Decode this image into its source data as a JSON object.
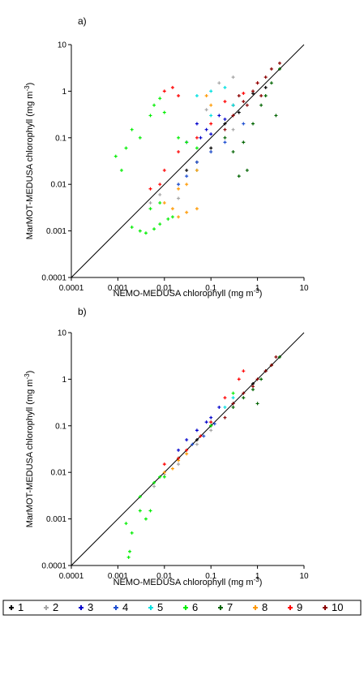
{
  "chart_data": [
    {
      "type": "scatter",
      "panel_label": "a)",
      "xlabel": "NEMO-MEDUSA chlorophyll (mg m",
      "ylabel": "MarMOT-MEDUSA chlorophyll (mg m",
      "unit_exponent": "-3",
      "xscale": "log",
      "yscale": "log",
      "xlim": [
        0.0001,
        10
      ],
      "ylim": [
        0.0001,
        10
      ],
      "x_ticks": [
        "0.0001",
        "0.001",
        "0.01",
        "0.1",
        "1",
        "10"
      ],
      "y_ticks": [
        "0.0001",
        "0.001",
        "0.01",
        "0.1",
        "1",
        "10"
      ],
      "reference_line": "1:1",
      "series": [
        {
          "name": "1",
          "color": "#000000",
          "points": [
            [
              0.05,
              0.03
            ],
            [
              0.1,
              0.06
            ],
            [
              0.2,
              0.2
            ],
            [
              0.4,
              0.35
            ],
            [
              0.8,
              0.9
            ],
            [
              1.5,
              1.2
            ],
            [
              0.03,
              0.02
            ],
            [
              0.3,
              0.5
            ]
          ]
        },
        {
          "name": "2",
          "color": "#a6a6a6",
          "points": [
            [
              0.005,
              0.004
            ],
            [
              0.008,
              0.006
            ],
            [
              0.02,
              0.01
            ],
            [
              0.05,
              0.02
            ],
            [
              0.1,
              0.05
            ],
            [
              0.3,
              0.15
            ],
            [
              0.15,
              1.5
            ],
            [
              0.3,
              2.0
            ],
            [
              0.08,
              0.4
            ],
            [
              0.02,
              0.005
            ]
          ]
        },
        {
          "name": "3",
          "color": "#0000cc",
          "points": [
            [
              0.05,
              0.2
            ],
            [
              0.08,
              0.15
            ],
            [
              0.1,
              0.12
            ],
            [
              0.15,
              0.3
            ],
            [
              0.2,
              0.25
            ],
            [
              0.03,
              0.08
            ],
            [
              0.06,
              0.1
            ]
          ]
        },
        {
          "name": "4",
          "color": "#1f4fd1",
          "points": [
            [
              0.03,
              0.015
            ],
            [
              0.05,
              0.03
            ],
            [
              0.1,
              0.05
            ],
            [
              0.2,
              0.08
            ],
            [
              0.5,
              0.2
            ],
            [
              0.02,
              0.01
            ]
          ]
        },
        {
          "name": "5",
          "color": "#00e0e0",
          "points": [
            [
              0.05,
              0.8
            ],
            [
              0.1,
              1.0
            ],
            [
              0.2,
              1.2
            ],
            [
              0.3,
              0.5
            ],
            [
              0.1,
              0.3
            ],
            [
              0.05,
              0.02
            ]
          ]
        },
        {
          "name": "6",
          "color": "#00ee00",
          "points": [
            [
              0.002,
              0.0012
            ],
            [
              0.003,
              0.001
            ],
            [
              0.004,
              0.0009
            ],
            [
              0.006,
              0.0011
            ],
            [
              0.008,
              0.0014
            ],
            [
              0.012,
              0.0018
            ],
            [
              0.015,
              0.002
            ],
            [
              0.0009,
              0.04
            ],
            [
              0.0012,
              0.02
            ],
            [
              0.0015,
              0.06
            ],
            [
              0.002,
              0.15
            ],
            [
              0.003,
              0.1
            ],
            [
              0.005,
              0.3
            ],
            [
              0.006,
              0.5
            ],
            [
              0.008,
              0.7
            ],
            [
              0.01,
              0.35
            ],
            [
              0.02,
              0.1
            ],
            [
              0.03,
              0.08
            ],
            [
              0.05,
              0.06
            ],
            [
              0.008,
              0.004
            ],
            [
              0.005,
              0.003
            ]
          ]
        },
        {
          "name": "7",
          "color": "#006400",
          "points": [
            [
              0.3,
              0.05
            ],
            [
              0.5,
              0.08
            ],
            [
              0.8,
              0.2
            ],
            [
              1.2,
              0.5
            ],
            [
              2.0,
              1.5
            ],
            [
              3.0,
              3.0
            ],
            [
              0.2,
              0.1
            ],
            [
              0.6,
              0.02
            ],
            [
              0.4,
              0.015
            ],
            [
              2.5,
              0.3
            ],
            [
              1.5,
              0.8
            ]
          ]
        },
        {
          "name": "8",
          "color": "#ff9900",
          "points": [
            [
              0.01,
              0.004
            ],
            [
              0.015,
              0.003
            ],
            [
              0.02,
              0.002
            ],
            [
              0.03,
              0.0025
            ],
            [
              0.05,
              0.003
            ],
            [
              0.02,
              0.008
            ],
            [
              0.03,
              0.01
            ],
            [
              0.05,
              0.02
            ],
            [
              0.1,
              0.5
            ],
            [
              0.08,
              0.8
            ]
          ]
        },
        {
          "name": "9",
          "color": "#ff0000",
          "points": [
            [
              0.005,
              0.008
            ],
            [
              0.008,
              0.01
            ],
            [
              0.01,
              0.02
            ],
            [
              0.02,
              0.05
            ],
            [
              0.05,
              0.1
            ],
            [
              0.1,
              0.2
            ],
            [
              0.2,
              0.6
            ],
            [
              0.3,
              0.3
            ],
            [
              0.01,
              1.0
            ],
            [
              0.015,
              1.2
            ],
            [
              0.02,
              0.8
            ],
            [
              0.5,
              0.9
            ],
            [
              1.0,
              1.5
            ]
          ]
        },
        {
          "name": "10",
          "color": "#8b0000",
          "points": [
            [
              0.3,
              0.3
            ],
            [
              0.5,
              0.6
            ],
            [
              0.8,
              1.0
            ],
            [
              1.0,
              1.5
            ],
            [
              1.5,
              2.0
            ],
            [
              2.0,
              3.0
            ],
            [
              3.0,
              4.0
            ],
            [
              0.6,
              0.5
            ],
            [
              1.2,
              0.8
            ],
            [
              0.4,
              0.8
            ],
            [
              0.2,
              0.15
            ]
          ]
        }
      ]
    },
    {
      "type": "scatter",
      "panel_label": "b)",
      "xlabel": "NEMO-MEDUSA chlorophyll (mg m",
      "ylabel": "MarMOT-MEDUSA chlorophyll (mg m",
      "unit_exponent": "-3",
      "xscale": "log",
      "yscale": "log",
      "xlim": [
        0.0001,
        10
      ],
      "ylim": [
        0.0001,
        10
      ],
      "x_ticks": [
        "0.0001",
        "0.001",
        "0.01",
        "0.1",
        "1",
        "10"
      ],
      "y_ticks": [
        "0.0001",
        "0.001",
        "0.01",
        "0.1",
        "1",
        "10"
      ],
      "reference_line": "1:1",
      "series": [
        {
          "name": "1",
          "color": "#000000",
          "points": [
            [
              0.05,
              0.05
            ],
            [
              0.1,
              0.1
            ],
            [
              0.3,
              0.3
            ],
            [
              0.8,
              0.8
            ],
            [
              1.5,
              1.5
            ]
          ]
        },
        {
          "name": "2",
          "color": "#a6a6a6",
          "points": [
            [
              0.006,
              0.005
            ],
            [
              0.01,
              0.009
            ],
            [
              0.02,
              0.015
            ],
            [
              0.05,
              0.04
            ],
            [
              0.1,
              0.08
            ]
          ]
        },
        {
          "name": "3",
          "color": "#0000cc",
          "points": [
            [
              0.03,
              0.05
            ],
            [
              0.05,
              0.08
            ],
            [
              0.08,
              0.12
            ],
            [
              0.1,
              0.15
            ],
            [
              0.15,
              0.25
            ],
            [
              0.02,
              0.03
            ]
          ]
        },
        {
          "name": "4",
          "color": "#1f4fd1",
          "points": [
            [
              0.02,
              0.02
            ],
            [
              0.04,
              0.04
            ],
            [
              0.07,
              0.06
            ],
            [
              0.12,
              0.11
            ]
          ]
        },
        {
          "name": "5",
          "color": "#00e0e0",
          "points": [
            [
              0.1,
              0.12
            ],
            [
              0.2,
              0.25
            ],
            [
              0.3,
              0.4
            ]
          ]
        },
        {
          "name": "6",
          "color": "#00ee00",
          "points": [
            [
              0.0015,
              0.0008
            ],
            [
              0.002,
              0.0005
            ],
            [
              0.0018,
              0.0002
            ],
            [
              0.0017,
              0.00015
            ],
            [
              0.003,
              0.003
            ],
            [
              0.004,
              0.001
            ],
            [
              0.005,
              0.0015
            ],
            [
              0.003,
              0.0015
            ],
            [
              0.006,
              0.006
            ],
            [
              0.008,
              0.008
            ],
            [
              0.01,
              0.008
            ],
            [
              0.02,
              0.02
            ],
            [
              0.1,
              0.1
            ],
            [
              0.3,
              0.5
            ]
          ]
        },
        {
          "name": "7",
          "color": "#006400",
          "points": [
            [
              0.3,
              0.25
            ],
            [
              0.5,
              0.4
            ],
            [
              0.8,
              0.6
            ],
            [
              1.2,
              1.0
            ],
            [
              2.0,
              2.0
            ],
            [
              3.0,
              3.0
            ],
            [
              1.0,
              0.3
            ]
          ]
        },
        {
          "name": "8",
          "color": "#ff9900",
          "points": [
            [
              0.01,
              0.01
            ],
            [
              0.015,
              0.012
            ],
            [
              0.02,
              0.018
            ],
            [
              0.03,
              0.025
            ]
          ]
        },
        {
          "name": "9",
          "color": "#ff0000",
          "points": [
            [
              0.01,
              0.015
            ],
            [
              0.02,
              0.02
            ],
            [
              0.03,
              0.03
            ],
            [
              0.06,
              0.06
            ],
            [
              0.1,
              0.12
            ],
            [
              0.2,
              0.4
            ],
            [
              0.4,
              1.0
            ],
            [
              0.5,
              1.5
            ]
          ]
        },
        {
          "name": "10",
          "color": "#8b0000",
          "points": [
            [
              0.5,
              0.5
            ],
            [
              0.8,
              0.7
            ],
            [
              1.0,
              1.0
            ],
            [
              1.5,
              1.5
            ],
            [
              2.0,
              2.0
            ],
            [
              2.5,
              3.0
            ],
            [
              0.3,
              0.3
            ],
            [
              0.2,
              0.15
            ]
          ]
        }
      ]
    }
  ],
  "legend": {
    "marker": "+",
    "entries": [
      "1",
      "2",
      "3",
      "4",
      "5",
      "6",
      "7",
      "8",
      "9",
      "10"
    ]
  }
}
